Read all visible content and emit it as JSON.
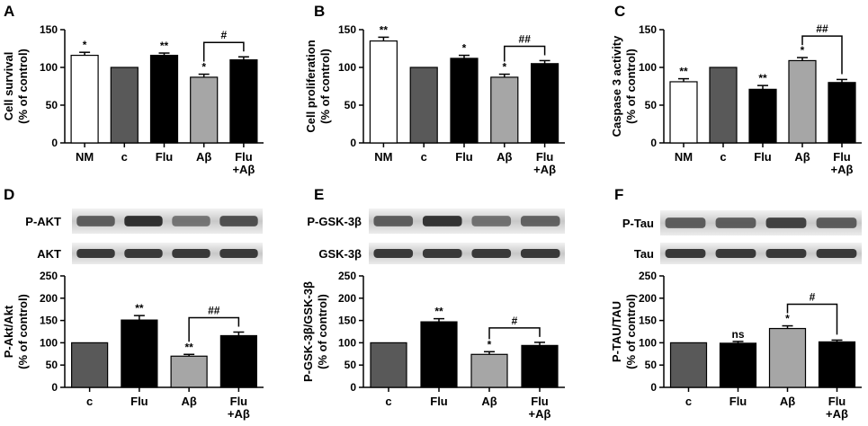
{
  "chart_data": [
    {
      "panel": "A",
      "type": "bar",
      "ylabel": [
        "Cell survival",
        "(% of control)"
      ],
      "ylim": [
        0,
        150
      ],
      "yticks": [
        0,
        50,
        100,
        150
      ],
      "categories": [
        "NM",
        "c",
        "Flu",
        "Aβ",
        "Flu\n+Aβ"
      ],
      "values": [
        116,
        100,
        116,
        87,
        110
      ],
      "errors": [
        4,
        0,
        3,
        4,
        4
      ],
      "colors": [
        "#ffffff",
        "#595959",
        "#000000",
        "#a6a6a6",
        "#000000"
      ],
      "annotations": [
        "*",
        "",
        "**",
        "*",
        ""
      ],
      "brackets": [
        {
          "from": 3,
          "to": 4,
          "label": "#"
        }
      ]
    },
    {
      "panel": "B",
      "type": "bar",
      "ylabel": [
        "Cell proliferation",
        "(% of control)"
      ],
      "ylim": [
        0,
        150
      ],
      "yticks": [
        0,
        50,
        100,
        150
      ],
      "categories": [
        "NM",
        "c",
        "Flu",
        "Aβ",
        "Flu\n+Aβ"
      ],
      "values": [
        135,
        100,
        112,
        87,
        105
      ],
      "errors": [
        5,
        0,
        4,
        4,
        4
      ],
      "colors": [
        "#ffffff",
        "#595959",
        "#000000",
        "#a6a6a6",
        "#000000"
      ],
      "annotations": [
        "**",
        "",
        "*",
        "*",
        ""
      ],
      "brackets": [
        {
          "from": 3,
          "to": 4,
          "label": "##"
        }
      ]
    },
    {
      "panel": "C",
      "type": "bar",
      "ylabel": [
        "Caspase 3 activity",
        "(% of control)"
      ],
      "ylim": [
        0,
        150
      ],
      "yticks": [
        0,
        50,
        100,
        150
      ],
      "categories": [
        "NM",
        "c",
        "Flu",
        "Aβ",
        "Flu\n+Aβ"
      ],
      "values": [
        81,
        100,
        71,
        109,
        80
      ],
      "errors": [
        4,
        0,
        5,
        4,
        4
      ],
      "colors": [
        "#ffffff",
        "#595959",
        "#000000",
        "#a6a6a6",
        "#000000"
      ],
      "annotations": [
        "**",
        "",
        "**",
        "*",
        ""
      ],
      "brackets": [
        {
          "from": 3,
          "to": 4,
          "label": "##"
        }
      ]
    },
    {
      "panel": "D",
      "type": "bar",
      "ylabel": [
        "P-Akt/Akt",
        "(% of control)"
      ],
      "ylim": [
        0,
        250
      ],
      "yticks": [
        0,
        50,
        100,
        150,
        200,
        250
      ],
      "categories": [
        "c",
        "Flu",
        "Aβ",
        "Flu\n+Aβ"
      ],
      "values": [
        100,
        151,
        70,
        116
      ],
      "errors": [
        0,
        10,
        4,
        8
      ],
      "colors": [
        "#595959",
        "#000000",
        "#a6a6a6",
        "#000000"
      ],
      "annotations": [
        "",
        "**",
        "**",
        ""
      ],
      "brackets": [
        {
          "from": 2,
          "to": 3,
          "label": "##"
        }
      ],
      "blot_labels": [
        "P-AKT",
        "AKT"
      ]
    },
    {
      "panel": "E",
      "type": "bar",
      "ylabel": [
        "P-GSK-3β/GSK-3β",
        "(% of control)"
      ],
      "ylim": [
        0,
        250
      ],
      "yticks": [
        0,
        50,
        100,
        150,
        200,
        250
      ],
      "categories": [
        "c",
        "Flu",
        "Aβ",
        "Flu\n+Aβ"
      ],
      "values": [
        100,
        147,
        74,
        94
      ],
      "errors": [
        0,
        7,
        6,
        7
      ],
      "colors": [
        "#595959",
        "#000000",
        "#a6a6a6",
        "#000000"
      ],
      "annotations": [
        "",
        "**",
        "*",
        ""
      ],
      "brackets": [
        {
          "from": 2,
          "to": 3,
          "label": "#"
        }
      ],
      "blot_labels": [
        "P-GSK-3β",
        "GSK-3β"
      ]
    },
    {
      "panel": "F",
      "type": "bar",
      "ylabel": [
        "P-TAU/TAU",
        "(% of control)"
      ],
      "ylim": [
        0,
        250
      ],
      "yticks": [
        0,
        50,
        100,
        150,
        200,
        250
      ],
      "categories": [
        "c",
        "Flu",
        "Aβ",
        "Flu\n+Aβ"
      ],
      "values": [
        100,
        99,
        132,
        102
      ],
      "errors": [
        0,
        4,
        6,
        4
      ],
      "colors": [
        "#595959",
        "#000000",
        "#a6a6a6",
        "#000000"
      ],
      "annotations": [
        "",
        "ns",
        "*",
        ""
      ],
      "brackets": [
        {
          "from": 2,
          "to": 3,
          "label": "#"
        }
      ],
      "blot_labels": [
        "P-Tau",
        "Tau"
      ]
    }
  ]
}
